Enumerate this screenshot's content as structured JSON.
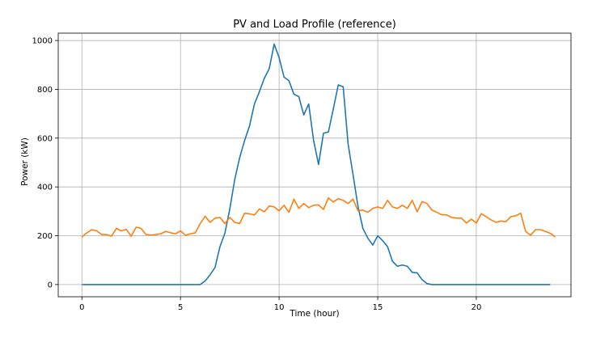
{
  "chart_data": {
    "type": "line",
    "title": "PV and Load Profile (reference)",
    "xlabel": "Time (hour)",
    "ylabel": "Power (kW)",
    "xlim": [
      -1.2,
      24.8
    ],
    "ylim": [
      -50,
      1030
    ],
    "grid": true,
    "x_ticks": [
      0,
      5,
      10,
      15,
      20
    ],
    "x_tick_labels": [
      "0",
      "5",
      "10",
      "15",
      "20"
    ],
    "y_ticks": [
      0,
      200,
      400,
      600,
      800,
      1000
    ],
    "y_tick_labels": [
      "0",
      "200",
      "400",
      "600",
      "800",
      "1000"
    ],
    "x_step_hours": 0.25,
    "series": [
      {
        "name": "PV",
        "color": "#1f77b4",
        "values": [
          0,
          0,
          0,
          0,
          0,
          0,
          0,
          0,
          0,
          0,
          0,
          0,
          0,
          0,
          0,
          0,
          0,
          0,
          0,
          0,
          0,
          0,
          0,
          0,
          0,
          15,
          40,
          70,
          155,
          210,
          310,
          430,
          520,
          590,
          650,
          740,
          790,
          845,
          885,
          985,
          930,
          850,
          835,
          780,
          770,
          695,
          740,
          590,
          492,
          620,
          625,
          720,
          818,
          810,
          575,
          450,
          320,
          230,
          190,
          162,
          200,
          180,
          155,
          95,
          75,
          80,
          75,
          50,
          48,
          20,
          4,
          0,
          0,
          0,
          0,
          0,
          0,
          0,
          0,
          0,
          0,
          0,
          0,
          0,
          0,
          0,
          0,
          0,
          0,
          0,
          0,
          0,
          0,
          0,
          0,
          0
        ]
      },
      {
        "name": "Load",
        "color": "#ff7f0e",
        "values": [
          195,
          212,
          225,
          220,
          205,
          205,
          198,
          230,
          220,
          226,
          198,
          235,
          230,
          205,
          203,
          205,
          208,
          218,
          212,
          208,
          220,
          202,
          208,
          212,
          250,
          280,
          255,
          272,
          275,
          250,
          275,
          255,
          250,
          292,
          290,
          285,
          310,
          298,
          322,
          318,
          302,
          325,
          296,
          350,
          312,
          332,
          315,
          325,
          326,
          308,
          355,
          338,
          352,
          345,
          332,
          350,
          302,
          305,
          296,
          312,
          318,
          312,
          345,
          318,
          312,
          325,
          312,
          345,
          298,
          340,
          332,
          305,
          296,
          286,
          285,
          275,
          272,
          272,
          252,
          268,
          252,
          290,
          278,
          265,
          255,
          260,
          258,
          278,
          282,
          292,
          218,
          202,
          225,
          225,
          218,
          210,
          195
        ]
      }
    ]
  }
}
